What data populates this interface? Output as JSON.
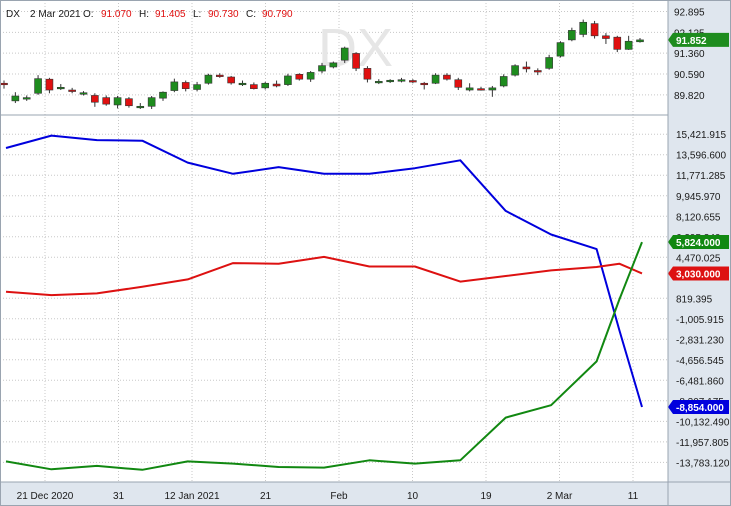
{
  "header": {
    "symbol": "DX",
    "date": "2 Mar 2021",
    "o_label": "O:",
    "o_value": "91.070",
    "h_label": "H:",
    "h_value": "91.405",
    "l_label": "L:",
    "l_value": "90.730",
    "c_label": "C:",
    "c_value": "90.790"
  },
  "watermark": "DX",
  "colors": {
    "up": "#1e8c1e",
    "down": "#e01010",
    "wick": "#333333",
    "blue": "#0000dd",
    "red": "#dd1111",
    "green": "#118811",
    "grid": "#c8c8c8",
    "axis_bg": "#dfe6ee",
    "frame": "#9aa4b0"
  },
  "chart_data": [
    {
      "type": "candlestick",
      "name": "DX",
      "ylim": [
        89.3,
        93.1
      ],
      "y_ticks": [
        "92.895",
        "92.125",
        "91.360",
        "90.590",
        "89.820"
      ],
      "last_value_label": "91.852",
      "candles": [
        {
          "o": 90.25,
          "h": 90.35,
          "l": 90.05,
          "c": 90.2
        },
        {
          "o": 89.6,
          "h": 89.92,
          "l": 89.52,
          "c": 89.78
        },
        {
          "o": 89.68,
          "h": 89.8,
          "l": 89.6,
          "c": 89.72
        },
        {
          "o": 89.88,
          "h": 90.55,
          "l": 89.82,
          "c": 90.42
        },
        {
          "o": 90.4,
          "h": 90.45,
          "l": 89.88,
          "c": 90.0
        },
        {
          "o": 90.08,
          "h": 90.22,
          "l": 90.0,
          "c": 90.1
        },
        {
          "o": 90.0,
          "h": 90.08,
          "l": 89.88,
          "c": 89.95
        },
        {
          "o": 89.88,
          "h": 89.96,
          "l": 89.8,
          "c": 89.9
        },
        {
          "o": 89.8,
          "h": 89.88,
          "l": 89.38,
          "c": 89.55
        },
        {
          "o": 89.72,
          "h": 89.8,
          "l": 89.42,
          "c": 89.48
        },
        {
          "o": 89.45,
          "h": 89.78,
          "l": 89.32,
          "c": 89.72
        },
        {
          "o": 89.68,
          "h": 89.74,
          "l": 89.35,
          "c": 89.42
        },
        {
          "o": 89.38,
          "h": 89.52,
          "l": 89.3,
          "c": 89.4
        },
        {
          "o": 89.4,
          "h": 89.78,
          "l": 89.3,
          "c": 89.72
        },
        {
          "o": 89.7,
          "h": 89.95,
          "l": 89.6,
          "c": 89.92
        },
        {
          "o": 89.98,
          "h": 90.42,
          "l": 89.92,
          "c": 90.3
        },
        {
          "o": 90.28,
          "h": 90.35,
          "l": 89.95,
          "c": 90.05
        },
        {
          "o": 90.02,
          "h": 90.3,
          "l": 89.95,
          "c": 90.2
        },
        {
          "o": 90.25,
          "h": 90.6,
          "l": 90.2,
          "c": 90.55
        },
        {
          "o": 90.55,
          "h": 90.62,
          "l": 90.45,
          "c": 90.5
        },
        {
          "o": 90.48,
          "h": 90.52,
          "l": 90.2,
          "c": 90.26
        },
        {
          "o": 90.22,
          "h": 90.35,
          "l": 90.15,
          "c": 90.25
        },
        {
          "o": 90.2,
          "h": 90.28,
          "l": 90.02,
          "c": 90.05
        },
        {
          "o": 90.08,
          "h": 90.3,
          "l": 90.02,
          "c": 90.25
        },
        {
          "o": 90.22,
          "h": 90.35,
          "l": 90.1,
          "c": 90.15
        },
        {
          "o": 90.2,
          "h": 90.6,
          "l": 90.15,
          "c": 90.52
        },
        {
          "o": 90.58,
          "h": 90.62,
          "l": 90.35,
          "c": 90.4
        },
        {
          "o": 90.4,
          "h": 90.7,
          "l": 90.3,
          "c": 90.65
        },
        {
          "o": 90.7,
          "h": 91.0,
          "l": 90.62,
          "c": 90.9
        },
        {
          "o": 90.85,
          "h": 91.05,
          "l": 90.8,
          "c": 91.0
        },
        {
          "o": 91.1,
          "h": 91.6,
          "l": 91.0,
          "c": 91.55
        },
        {
          "o": 91.35,
          "h": 91.4,
          "l": 90.7,
          "c": 90.8
        },
        {
          "o": 90.8,
          "h": 90.88,
          "l": 90.28,
          "c": 90.4
        },
        {
          "o": 90.3,
          "h": 90.4,
          "l": 90.22,
          "c": 90.32
        },
        {
          "o": 90.32,
          "h": 90.4,
          "l": 90.26,
          "c": 90.36
        },
        {
          "o": 90.36,
          "h": 90.45,
          "l": 90.28,
          "c": 90.38
        },
        {
          "o": 90.35,
          "h": 90.4,
          "l": 90.25,
          "c": 90.3
        },
        {
          "o": 90.25,
          "h": 90.3,
          "l": 90.02,
          "c": 90.2
        },
        {
          "o": 90.25,
          "h": 90.62,
          "l": 90.22,
          "c": 90.55
        },
        {
          "o": 90.55,
          "h": 90.62,
          "l": 90.35,
          "c": 90.4
        },
        {
          "o": 90.38,
          "h": 90.45,
          "l": 90.0,
          "c": 90.1
        },
        {
          "o": 90.0,
          "h": 90.25,
          "l": 89.95,
          "c": 90.08
        },
        {
          "o": 90.05,
          "h": 90.12,
          "l": 89.98,
          "c": 90.02
        },
        {
          "o": 90.0,
          "h": 90.15,
          "l": 89.75,
          "c": 90.08
        },
        {
          "o": 90.15,
          "h": 90.58,
          "l": 90.1,
          "c": 90.5
        },
        {
          "o": 90.55,
          "h": 90.95,
          "l": 90.5,
          "c": 90.9
        },
        {
          "o": 90.85,
          "h": 91.05,
          "l": 90.65,
          "c": 90.78
        },
        {
          "o": 90.72,
          "h": 90.8,
          "l": 90.55,
          "c": 90.7
        },
        {
          "o": 90.8,
          "h": 91.3,
          "l": 90.75,
          "c": 91.2
        },
        {
          "o": 91.25,
          "h": 91.8,
          "l": 91.2,
          "c": 91.75
        },
        {
          "o": 91.85,
          "h": 92.3,
          "l": 91.8,
          "c": 92.2
        },
        {
          "o": 92.05,
          "h": 92.6,
          "l": 91.95,
          "c": 92.5
        },
        {
          "o": 92.45,
          "h": 92.55,
          "l": 91.9,
          "c": 92.0
        },
        {
          "o": 92.0,
          "h": 92.1,
          "l": 91.7,
          "c": 91.9
        },
        {
          "o": 91.95,
          "h": 92.0,
          "l": 91.4,
          "c": 91.5
        },
        {
          "o": 91.5,
          "h": 92.0,
          "l": 91.48,
          "c": 91.8
        },
        {
          "o": 91.78,
          "h": 91.92,
          "l": 91.75,
          "c": 91.85
        }
      ]
    },
    {
      "type": "line",
      "name": "",
      "ylim": [
        -15000,
        16600
      ],
      "y_ticks": [
        "15,421.915",
        "13,596.600",
        "11,771.285",
        "9,945.970",
        "8,120.655",
        "6,295.340",
        "4,470.025",
        "819.395",
        "-1,005.915",
        "-2,831.230",
        "-4,656.545",
        "-6,481.860",
        "-8,307.175",
        "-10,132.490",
        "-11,957.805",
        "-13,783.120"
      ],
      "x_tick_labels": [
        "21 Dec 2020",
        "31",
        "12 Jan 2021",
        "21",
        "Feb",
        "10",
        "19",
        "2 Mar",
        "11"
      ],
      "x_index": [
        0,
        2,
        4,
        6,
        8,
        10,
        12,
        14,
        16,
        18,
        20,
        22,
        24,
        26,
        27,
        28
      ],
      "series": [
        {
          "name": "",
          "color": "blue",
          "values": [
            14200,
            15300,
            14900,
            14850,
            12900,
            11900,
            12500,
            11900,
            11900,
            12400,
            13100,
            8600,
            6500,
            5200,
            -2000,
            -8854
          ]
        },
        {
          "name": "",
          "color": "red",
          "values": [
            1400,
            1100,
            1250,
            1850,
            2500,
            3950,
            3900,
            4500,
            3650,
            3650,
            2300,
            2800,
            3300,
            3600,
            3900,
            3030
          ]
        },
        {
          "name": "",
          "color": "green",
          "values": [
            -13700,
            -14400,
            -14100,
            -14450,
            -13700,
            -13900,
            -14200,
            -14250,
            -13600,
            -13900,
            -13600,
            -9800,
            -8700,
            -4800,
            700,
            5824
          ]
        }
      ],
      "value_tags": [
        {
          "series": 2,
          "label": "5,824.000",
          "color": "green"
        },
        {
          "series": 1,
          "label": "3,030.000",
          "color": "red"
        },
        {
          "series": 0,
          "label": "-8,854.000",
          "color": "blue"
        }
      ]
    }
  ]
}
